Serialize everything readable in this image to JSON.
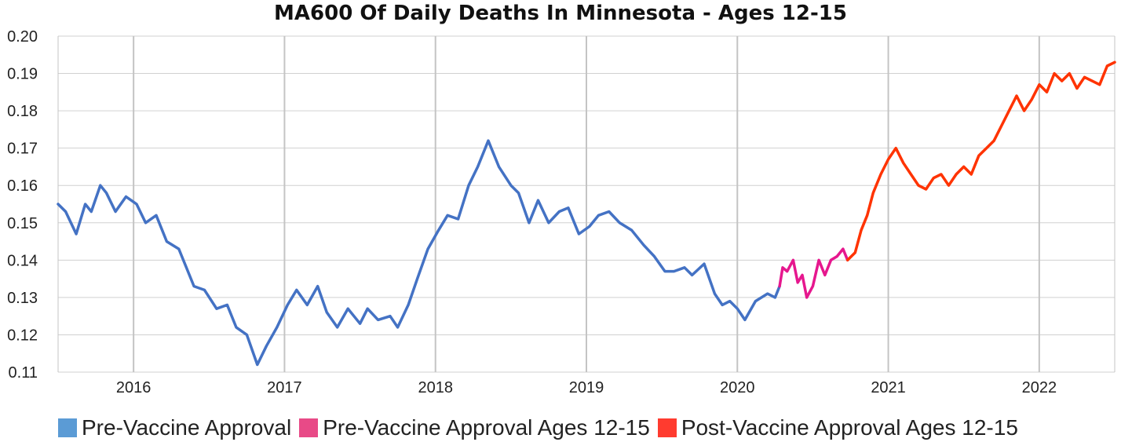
{
  "chart_data": {
    "type": "line",
    "title": "MA600 Of Daily Deaths In Minnesota - Ages 12-15",
    "xlabel": "",
    "ylabel": "",
    "ylim": [
      0.11,
      0.2
    ],
    "y_ticks": [
      "0.20",
      "0.19",
      "0.18",
      "0.17",
      "0.16",
      "0.15",
      "0.14",
      "0.13",
      "0.12",
      "0.11"
    ],
    "xlim": [
      2015.5,
      2022.5
    ],
    "x_ticks": [
      "2016",
      "2017",
      "2018",
      "2019",
      "2020",
      "2021",
      "2022"
    ],
    "grid": true,
    "legend_position": "bottom",
    "series": [
      {
        "name": "Pre-Vaccine Approval",
        "line_color": "#4472C4",
        "legend_color": "#5B9BD5",
        "points": [
          [
            2015.5,
            0.155
          ],
          [
            2015.55,
            0.153
          ],
          [
            2015.62,
            0.147
          ],
          [
            2015.68,
            0.155
          ],
          [
            2015.72,
            0.153
          ],
          [
            2015.78,
            0.16
          ],
          [
            2015.82,
            0.158
          ],
          [
            2015.88,
            0.153
          ],
          [
            2015.95,
            0.157
          ],
          [
            2016.02,
            0.155
          ],
          [
            2016.08,
            0.15
          ],
          [
            2016.15,
            0.152
          ],
          [
            2016.22,
            0.145
          ],
          [
            2016.3,
            0.143
          ],
          [
            2016.4,
            0.133
          ],
          [
            2016.47,
            0.132
          ],
          [
            2016.55,
            0.127
          ],
          [
            2016.62,
            0.128
          ],
          [
            2016.68,
            0.122
          ],
          [
            2016.75,
            0.12
          ],
          [
            2016.82,
            0.112
          ],
          [
            2016.88,
            0.117
          ],
          [
            2016.95,
            0.122
          ],
          [
            2017.02,
            0.128
          ],
          [
            2017.08,
            0.132
          ],
          [
            2017.15,
            0.128
          ],
          [
            2017.22,
            0.133
          ],
          [
            2017.28,
            0.126
          ],
          [
            2017.35,
            0.122
          ],
          [
            2017.42,
            0.127
          ],
          [
            2017.5,
            0.123
          ],
          [
            2017.55,
            0.127
          ],
          [
            2017.62,
            0.124
          ],
          [
            2017.7,
            0.125
          ],
          [
            2017.75,
            0.122
          ],
          [
            2017.82,
            0.128
          ],
          [
            2017.88,
            0.135
          ],
          [
            2017.95,
            0.143
          ],
          [
            2018.02,
            0.148
          ],
          [
            2018.08,
            0.152
          ],
          [
            2018.15,
            0.151
          ],
          [
            2018.22,
            0.16
          ],
          [
            2018.28,
            0.165
          ],
          [
            2018.35,
            0.172
          ],
          [
            2018.42,
            0.165
          ],
          [
            2018.5,
            0.16
          ],
          [
            2018.55,
            0.158
          ],
          [
            2018.62,
            0.15
          ],
          [
            2018.68,
            0.156
          ],
          [
            2018.75,
            0.15
          ],
          [
            2018.82,
            0.153
          ],
          [
            2018.88,
            0.154
          ],
          [
            2018.95,
            0.147
          ],
          [
            2019.02,
            0.149
          ],
          [
            2019.08,
            0.152
          ],
          [
            2019.15,
            0.153
          ],
          [
            2019.22,
            0.15
          ],
          [
            2019.3,
            0.148
          ],
          [
            2019.38,
            0.144
          ],
          [
            2019.45,
            0.141
          ],
          [
            2019.52,
            0.137
          ],
          [
            2019.58,
            0.137
          ],
          [
            2019.65,
            0.138
          ],
          [
            2019.7,
            0.136
          ],
          [
            2019.78,
            0.139
          ],
          [
            2019.85,
            0.131
          ],
          [
            2019.9,
            0.128
          ],
          [
            2019.95,
            0.129
          ],
          [
            2020.0,
            0.127
          ],
          [
            2020.05,
            0.124
          ],
          [
            2020.12,
            0.129
          ],
          [
            2020.2,
            0.131
          ],
          [
            2020.25,
            0.13
          ],
          [
            2020.28,
            0.133
          ]
        ]
      },
      {
        "name": "Pre-Vaccine Approval Ages 12-15",
        "line_color": "#E6178E",
        "legend_color": "#E84A87",
        "points": [
          [
            2020.28,
            0.133
          ],
          [
            2020.3,
            0.138
          ],
          [
            2020.33,
            0.137
          ],
          [
            2020.37,
            0.14
          ],
          [
            2020.4,
            0.134
          ],
          [
            2020.43,
            0.136
          ],
          [
            2020.46,
            0.13
          ],
          [
            2020.5,
            0.133
          ],
          [
            2020.54,
            0.14
          ],
          [
            2020.58,
            0.136
          ],
          [
            2020.62,
            0.14
          ],
          [
            2020.66,
            0.141
          ],
          [
            2020.7,
            0.143
          ],
          [
            2020.73,
            0.14
          ]
        ]
      },
      {
        "name": "Post-Vaccine Approval Ages 12-15",
        "line_color": "#FF3300",
        "legend_color": "#FF3B2F",
        "points": [
          [
            2020.73,
            0.14
          ],
          [
            2020.78,
            0.142
          ],
          [
            2020.82,
            0.148
          ],
          [
            2020.86,
            0.152
          ],
          [
            2020.9,
            0.158
          ],
          [
            2020.95,
            0.163
          ],
          [
            2021.0,
            0.167
          ],
          [
            2021.05,
            0.17
          ],
          [
            2021.1,
            0.166
          ],
          [
            2021.15,
            0.163
          ],
          [
            2021.2,
            0.16
          ],
          [
            2021.25,
            0.159
          ],
          [
            2021.3,
            0.162
          ],
          [
            2021.35,
            0.163
          ],
          [
            2021.4,
            0.16
          ],
          [
            2021.45,
            0.163
          ],
          [
            2021.5,
            0.165
          ],
          [
            2021.55,
            0.163
          ],
          [
            2021.6,
            0.168
          ],
          [
            2021.65,
            0.17
          ],
          [
            2021.7,
            0.172
          ],
          [
            2021.75,
            0.176
          ],
          [
            2021.8,
            0.18
          ],
          [
            2021.85,
            0.184
          ],
          [
            2021.9,
            0.18
          ],
          [
            2021.95,
            0.183
          ],
          [
            2022.0,
            0.187
          ],
          [
            2022.05,
            0.185
          ],
          [
            2022.1,
            0.19
          ],
          [
            2022.15,
            0.188
          ],
          [
            2022.2,
            0.19
          ],
          [
            2022.25,
            0.186
          ],
          [
            2022.3,
            0.189
          ],
          [
            2022.35,
            0.188
          ],
          [
            2022.4,
            0.187
          ],
          [
            2022.45,
            0.192
          ],
          [
            2022.5,
            0.193
          ]
        ]
      }
    ]
  }
}
